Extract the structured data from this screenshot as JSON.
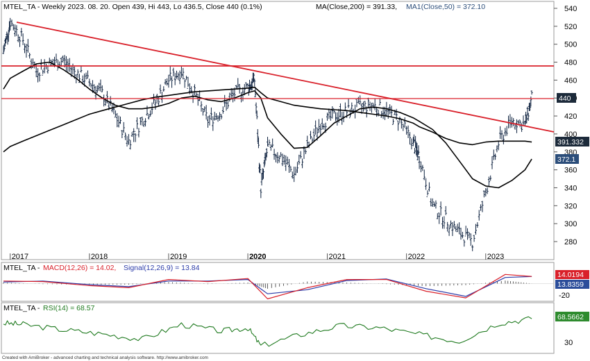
{
  "main": {
    "title": "MTEL_TA - Weekly 2023. 08. 20. Open 439, Hi 443, Lo 436.5, Close 440 (0.1%)",
    "ma200_text": "MA(Close,200) = 391.33,",
    "ma50_text": "MA1(Close,50) = 372.10",
    "y_ticks": [
      "540",
      "520",
      "500",
      "480",
      "460",
      "440",
      "420",
      "400",
      "380",
      "360",
      "340",
      "320",
      "300",
      "280"
    ],
    "x_labels": [
      "2017",
      "2018",
      "2019",
      "2020",
      "2021",
      "2022",
      "2023"
    ],
    "price_badge": "440",
    "ma200_badge": "391.332",
    "ma50_badge": "372.1"
  },
  "macd": {
    "title_prefix": "MTEL_TA - ",
    "macd_text": "MACD(12,26) = 14.02,",
    "signal_text": "Signal(12,26,9) = 13.84",
    "y_tick": "-20",
    "macd_badge": "14.0194",
    "signal_badge": "13.8359"
  },
  "rsi": {
    "title_prefix": "MTEL_TA - ",
    "rsi_text": "RSI(14) = 68.57",
    "y_tick": "30",
    "rsi_badge": "68.5662"
  },
  "footer": "Created with AmiBroker - advanced charting and technical analysis software. http://www.amibroker.com",
  "colors": {
    "price": "#0a1e3c",
    "ma": "#000000",
    "trend": "#d9202a",
    "macd": "#d9202a",
    "signal": "#2a3aa8",
    "rsi": "#1f7a1f",
    "badge_dark": "#1c2a3a",
    "badge_blue": "#2b4d7a",
    "badge_green": "#2e8b2e"
  },
  "chart_data": [
    {
      "type": "line",
      "title": "MTEL_TA - Weekly 2023. 08. 20. Open 439, Hi 443, Lo 436.5, Close 440 (0.1%)",
      "x": [
        "2016-12",
        "2017-01",
        "2017-03",
        "2017-05",
        "2017-07",
        "2017-09",
        "2017-11",
        "2018-01",
        "2018-03",
        "2018-05",
        "2018-07",
        "2018-09",
        "2018-11",
        "2019-01",
        "2019-03",
        "2019-05",
        "2019-07",
        "2019-09",
        "2019-11",
        "2020-01",
        "2020-02",
        "2020-03",
        "2020-04",
        "2020-06",
        "2020-08",
        "2020-10",
        "2020-12",
        "2021-02",
        "2021-04",
        "2021-06",
        "2021-08",
        "2021-10",
        "2021-12",
        "2022-02",
        "2022-03",
        "2022-05",
        "2022-07",
        "2022-09",
        "2022-11",
        "2023-01",
        "2023-03",
        "2023-05",
        "2023-07",
        "2023-08"
      ],
      "series": [
        {
          "name": "Close",
          "values": [
            492,
            525,
            505,
            470,
            478,
            482,
            468,
            458,
            445,
            420,
            392,
            415,
            435,
            460,
            470,
            445,
            415,
            425,
            445,
            452,
            460,
            340,
            385,
            375,
            355,
            385,
            412,
            420,
            425,
            430,
            432,
            425,
            415,
            390,
            375,
            320,
            305,
            290,
            280,
            335,
            390,
            415,
            410,
            440
          ]
        },
        {
          "name": "MA(Close,200)",
          "values": [
            380,
            386,
            392,
            398,
            404,
            410,
            416,
            422,
            426,
            430,
            434,
            438,
            441,
            443,
            445,
            447,
            448,
            449,
            450,
            451,
            452,
            446,
            440,
            436,
            432,
            430,
            428,
            427,
            426,
            424,
            422,
            420,
            417,
            412,
            408,
            402,
            395,
            390,
            388,
            391,
            392,
            392,
            392,
            391
          ]
        },
        {
          "name": "MA1(Close,50)",
          "values": [
            450,
            462,
            470,
            478,
            480,
            472,
            462,
            450,
            440,
            432,
            428,
            428,
            430,
            434,
            440,
            442,
            438,
            436,
            440,
            446,
            448,
            440,
            418,
            400,
            384,
            385,
            398,
            412,
            420,
            428,
            430,
            428,
            424,
            418,
            414,
            405,
            390,
            370,
            350,
            342,
            340,
            348,
            360,
            372
          ]
        }
      ],
      "ylim": [
        270,
        550
      ],
      "horizontal_levels": [
        475,
        440
      ]
    },
    {
      "type": "line",
      "title": "MTEL_TA - MACD(12,26) = 14.02, Signal(12,26,9) = 13.84",
      "x": [
        "2016-12",
        "2017-06",
        "2018-01",
        "2018-07",
        "2019-01",
        "2019-07",
        "2020-01",
        "2020-04",
        "2020-10",
        "2021-04",
        "2021-10",
        "2022-04",
        "2022-10",
        "2023-04",
        "2023-08"
      ],
      "series": [
        {
          "name": "MACD(12,26)",
          "values": [
            5,
            4,
            -4,
            -8,
            8,
            4,
            10,
            -30,
            -8,
            8,
            8,
            -15,
            -28,
            18,
            14.0194
          ]
        },
        {
          "name": "Signal(12,26,9)",
          "values": [
            3,
            5,
            -2,
            -6,
            5,
            5,
            8,
            -20,
            -12,
            6,
            9,
            -10,
            -25,
            12,
            13.8359
          ]
        }
      ],
      "ylim": [
        -32,
        32
      ]
    },
    {
      "type": "line",
      "title": "MTEL_TA - RSI(14) = 68.57",
      "x": [
        "2016-12",
        "2017-03",
        "2017-09",
        "2018-03",
        "2018-09",
        "2019-03",
        "2019-09",
        "2020-01",
        "2020-03",
        "2020-09",
        "2021-03",
        "2021-09",
        "2022-03",
        "2022-09",
        "2023-03",
        "2023-08"
      ],
      "series": [
        {
          "name": "RSI(14)",
          "values": [
            62,
            60,
            52,
            46,
            38,
            60,
            50,
            55,
            28,
            45,
            58,
            55,
            45,
            35,
            62,
            68.5662
          ]
        }
      ],
      "ylim": [
        20,
        80
      ]
    }
  ]
}
